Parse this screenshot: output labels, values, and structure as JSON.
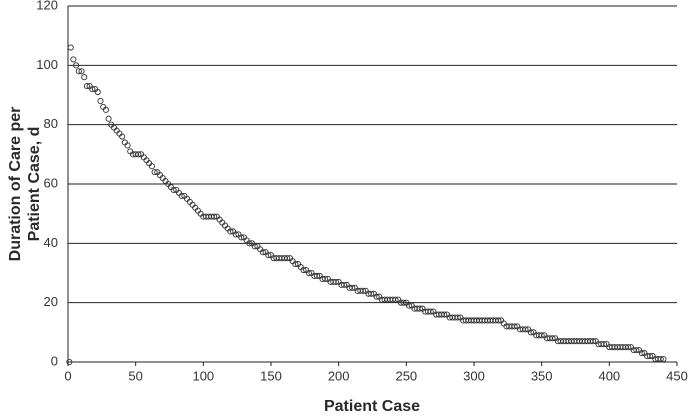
{
  "chart_data": {
    "type": "scatter",
    "x_label": "Patient Case",
    "y_label": [
      "Duration of Care per",
      "Patient Case, d"
    ],
    "marker_color": "#333333",
    "grid": true,
    "xlim": [
      0,
      450
    ],
    "xticks": [
      0,
      50,
      100,
      150,
      200,
      250,
      300,
      350,
      400,
      450
    ],
    "ylim": [
      0,
      120
    ],
    "yticks": [
      0,
      20,
      40,
      60,
      80,
      100,
      120
    ],
    "x": [
      1,
      2,
      4,
      6,
      8,
      10,
      12,
      14,
      16,
      18,
      20,
      22,
      24,
      26,
      28,
      30,
      32,
      34,
      36,
      38,
      40,
      42,
      44,
      46,
      48,
      50,
      52,
      54,
      56,
      58,
      60,
      62,
      64,
      66,
      68,
      70,
      72,
      74,
      76,
      78,
      80,
      82,
      84,
      86,
      88,
      90,
      92,
      94,
      96,
      98,
      100,
      102,
      104,
      106,
      108,
      110,
      112,
      114,
      116,
      118,
      120,
      122,
      124,
      126,
      128,
      130,
      132,
      134,
      136,
      138,
      140,
      142,
      144,
      146,
      148,
      150,
      152,
      154,
      156,
      158,
      160,
      162,
      164,
      166,
      168,
      170,
      172,
      174,
      176,
      178,
      180,
      182,
      184,
      186,
      188,
      190,
      192,
      194,
      196,
      198,
      200,
      202,
      204,
      206,
      208,
      210,
      212,
      214,
      216,
      218,
      220,
      222,
      224,
      226,
      228,
      230,
      232,
      234,
      236,
      238,
      240,
      242,
      244,
      246,
      248,
      250,
      252,
      254,
      256,
      258,
      260,
      262,
      264,
      266,
      268,
      270,
      272,
      274,
      276,
      278,
      280,
      282,
      284,
      286,
      288,
      290,
      292,
      294,
      296,
      298,
      300,
      302,
      304,
      306,
      308,
      310,
      312,
      314,
      316,
      318,
      320,
      322,
      324,
      326,
      328,
      330,
      332,
      334,
      336,
      338,
      340,
      342,
      344,
      346,
      348,
      350,
      352,
      354,
      356,
      358,
      360,
      362,
      364,
      366,
      368,
      370,
      372,
      374,
      376,
      378,
      380,
      382,
      384,
      386,
      388,
      390,
      392,
      394,
      396,
      398,
      400,
      402,
      404,
      406,
      408,
      410,
      412,
      414,
      416,
      418,
      420,
      422,
      424,
      426,
      428,
      430,
      432,
      434,
      436,
      438,
      440
    ],
    "values": [
      0,
      106,
      102,
      100,
      98,
      98,
      96,
      93,
      93,
      92,
      92,
      91,
      88,
      86,
      85,
      82,
      80,
      79,
      78,
      77,
      76,
      74,
      73,
      71,
      70,
      70,
      70,
      70,
      69,
      68,
      67,
      66,
      64,
      64,
      63,
      62,
      61,
      60,
      59,
      58,
      58,
      57,
      56,
      56,
      55,
      54,
      53,
      52,
      51,
      50,
      49,
      49,
      49,
      49,
      49,
      49,
      48,
      47,
      46,
      45,
      44,
      44,
      43,
      43,
      42,
      42,
      41,
      40,
      40,
      39,
      39,
      38,
      37,
      37,
      36,
      36,
      35,
      35,
      35,
      35,
      35,
      35,
      35,
      34,
      33,
      33,
      32,
      31,
      31,
      30,
      30,
      29,
      29,
      29,
      28,
      28,
      28,
      27,
      27,
      27,
      27,
      26,
      26,
      26,
      25,
      25,
      25,
      24,
      24,
      24,
      24,
      23,
      23,
      23,
      22,
      22,
      21,
      21,
      21,
      21,
      21,
      21,
      21,
      20,
      20,
      20,
      19,
      19,
      18,
      18,
      18,
      18,
      17,
      17,
      17,
      17,
      16,
      16,
      16,
      16,
      16,
      15,
      15,
      15,
      15,
      15,
      14,
      14,
      14,
      14,
      14,
      14,
      14,
      14,
      14,
      14,
      14,
      14,
      14,
      14,
      14,
      13,
      12,
      12,
      12,
      12,
      12,
      11,
      11,
      11,
      11,
      10,
      10,
      9,
      9,
      9,
      9,
      8,
      8,
      8,
      8,
      7,
      7,
      7,
      7,
      7,
      7,
      7,
      7,
      7,
      7,
      7,
      7,
      7,
      7,
      7,
      6,
      6,
      6,
      6,
      5,
      5,
      5,
      5,
      5,
      5,
      5,
      5,
      5,
      4,
      4,
      4,
      3,
      3,
      2,
      2,
      2,
      1,
      1,
      1,
      1
    ]
  }
}
